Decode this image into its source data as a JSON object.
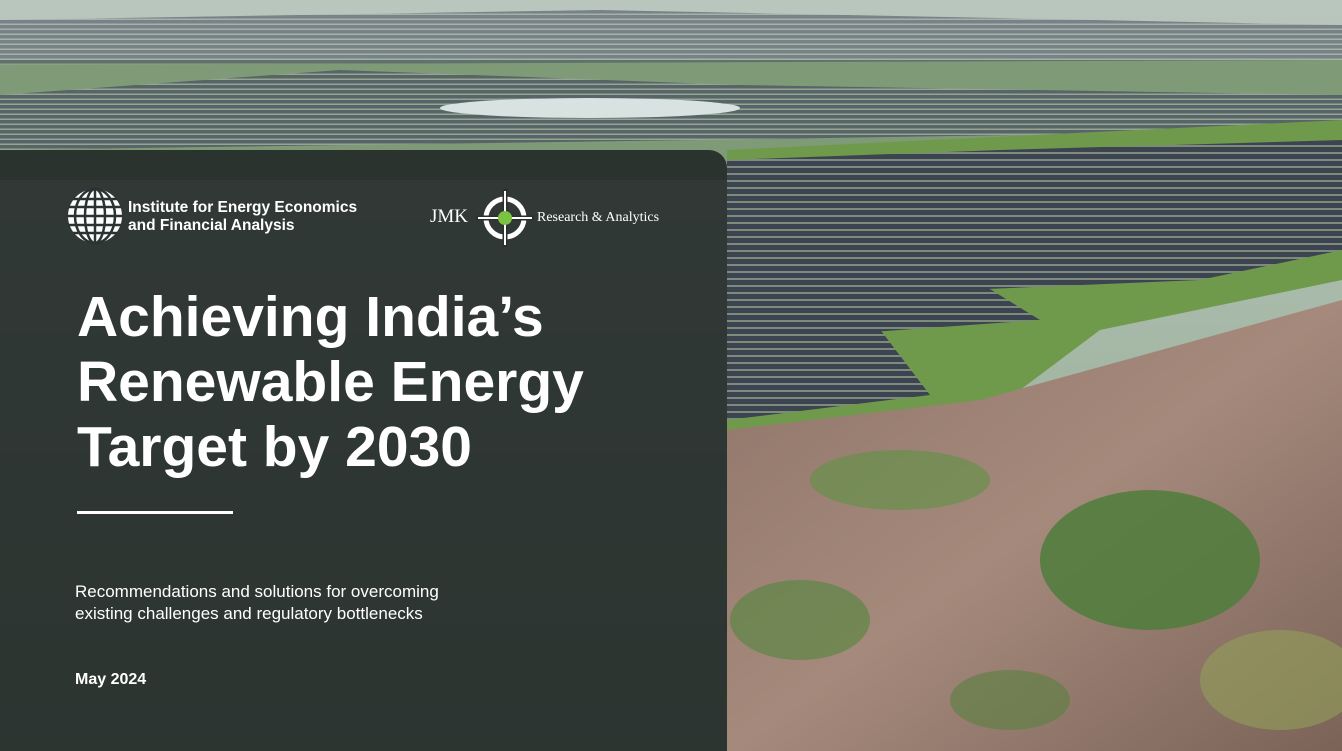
{
  "header": {
    "org_logo": {
      "line1": "Institute for Energy Economics",
      "line2": "and Financial Analysis"
    },
    "partner_logo": {
      "mark": "JMK",
      "name": "Research & Analytics"
    }
  },
  "title": {
    "lines": [
      "Achieving India’s",
      "Renewable Energy",
      "Target by 2030"
    ]
  },
  "subtitle": {
    "lines": [
      "Recommendations and solutions for overcoming",
      "existing challenges and regulatory bottlenecks"
    ]
  },
  "date": "May 2024"
}
